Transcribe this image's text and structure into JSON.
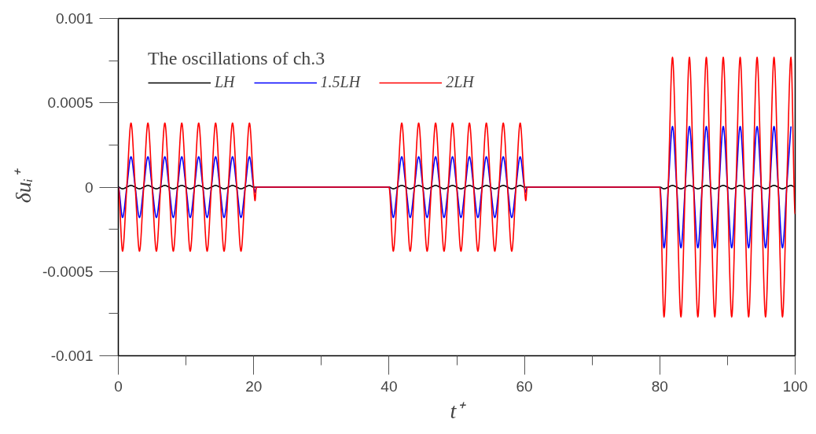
{
  "chart_data": {
    "type": "line",
    "legend_title": "The oscillations of ch.3",
    "xlabel": "t⁺",
    "ylabel": "δuᵢ⁺",
    "legend": "top left",
    "line_style": "solid",
    "xlim": [
      0,
      100
    ],
    "ylim": [
      -0.001,
      0.001
    ],
    "xticks": [
      0,
      {
        "value": 10,
        "label": null
      },
      20,
      {
        "value": 30,
        "label": null
      },
      40,
      {
        "value": 50,
        "label": null
      },
      60,
      {
        "value": 70,
        "label": null
      },
      80,
      {
        "value": 90,
        "label": null
      },
      100
    ],
    "yticks": [
      -0.001,
      {
        "value": -0.00075,
        "label": null
      },
      -0.0005,
      {
        "value": -0.00025,
        "label": null
      },
      0,
      {
        "value": 0.00025,
        "label": null
      },
      0.0005,
      {
        "value": 0.00075,
        "label": null
      },
      0.001
    ],
    "x": [
      0,
      0.625,
      1.25,
      1.875,
      2.5,
      3.125,
      3.75,
      4.375,
      5,
      5.625,
      6.25,
      6.875,
      7.5,
      8.125,
      8.75,
      9.375,
      10,
      10.625,
      11.25,
      11.875,
      12.5,
      13.125,
      13.75,
      14.375,
      15,
      15.625,
      16.25,
      16.875,
      17.5,
      18.125,
      18.75,
      19.375,
      20,
      20.2,
      20.4,
      40,
      40.625,
      41.25,
      41.875,
      42.5,
      43.125,
      43.75,
      44.375,
      45,
      45.625,
      46.25,
      46.875,
      47.5,
      48.125,
      48.75,
      49.375,
      50,
      50.625,
      51.25,
      51.875,
      52.5,
      53.125,
      53.75,
      54.375,
      55,
      55.625,
      56.25,
      56.875,
      57.5,
      58.125,
      58.75,
      59.375,
      60,
      60.2,
      60.4,
      80,
      80.625,
      81.25,
      81.875,
      82.5,
      83.125,
      83.75,
      84.375,
      85,
      85.625,
      86.25,
      86.875,
      87.5,
      88.125,
      88.75,
      89.375,
      90,
      90.625,
      91.25,
      91.875,
      92.5,
      93.125,
      93.75,
      94.375,
      95,
      95.625,
      96.25,
      96.875,
      97.5,
      98.125,
      98.75,
      99.375,
      100
    ],
    "series": [
      {
        "name": "LH",
        "color": "#000000",
        "values": [
          0,
          -1e-05,
          0,
          1e-05,
          0,
          -1e-05,
          0,
          1e-05,
          0,
          -1e-05,
          0,
          1e-05,
          0,
          -1e-05,
          0,
          1e-05,
          0,
          -1e-05,
          0,
          1e-05,
          0,
          -1e-05,
          0,
          1e-05,
          0,
          -1e-05,
          0,
          1e-05,
          0,
          -1e-05,
          0,
          1e-05,
          0,
          0,
          0,
          0,
          -1e-05,
          0,
          1e-05,
          0,
          -1e-05,
          0,
          1e-05,
          0,
          -1e-05,
          0,
          1e-05,
          0,
          -1e-05,
          0,
          1e-05,
          0,
          -1e-05,
          0,
          1e-05,
          0,
          -1e-05,
          0,
          1e-05,
          0,
          -1e-05,
          0,
          1e-05,
          0,
          -1e-05,
          0,
          1e-05,
          0,
          0,
          0,
          0,
          -1e-05,
          0,
          1e-05,
          0,
          -1e-05,
          0,
          1e-05,
          0,
          -1e-05,
          0,
          1e-05,
          0,
          -1e-05,
          0,
          1e-05,
          0,
          -1e-05,
          0,
          1e-05,
          0,
          -1e-05,
          0,
          1e-05,
          0,
          -1e-05,
          0,
          1e-05,
          0,
          -1e-05,
          0,
          1e-05,
          0
        ]
      },
      {
        "name": "1.5LH",
        "color": "#0000ff",
        "values": [
          0,
          -0.00018,
          0,
          0.00018,
          0,
          -0.00018,
          0,
          0.00018,
          0,
          -0.00018,
          0,
          0.00018,
          0,
          -0.00018,
          0,
          0.00018,
          0,
          -0.00018,
          0,
          0.00018,
          0,
          -0.00018,
          0,
          0.00018,
          0,
          -0.00018,
          0,
          0.00018,
          0,
          -0.00018,
          0,
          0.00018,
          0,
          -3e-05,
          0,
          0,
          -0.00018,
          0,
          0.00018,
          0,
          -0.00018,
          0,
          0.00018,
          0,
          -0.00018,
          0,
          0.00018,
          0,
          -0.00018,
          0,
          0.00018,
          0,
          -0.00018,
          0,
          0.00018,
          0,
          -0.00018,
          0,
          0.00018,
          0,
          -0.00018,
          0,
          0.00018,
          0,
          -0.00018,
          0,
          0.00018,
          0,
          -3e-05,
          0,
          0,
          -0.00036,
          0,
          0.00036,
          0,
          -0.00036,
          0,
          0.00036,
          0,
          -0.00036,
          0,
          0.00036,
          0,
          -0.00036,
          0,
          0.00036,
          0,
          -0.00036,
          0,
          0.00036,
          0,
          -0.00036,
          0,
          0.00036,
          0,
          -0.00036,
          0,
          0.00036,
          0,
          -0.00036,
          0,
          0.00036,
          null
        ]
      },
      {
        "name": "2LH",
        "color": "#ff0000",
        "values": [
          0,
          -0.00038,
          0,
          0.00038,
          0,
          -0.00038,
          0,
          0.00038,
          0,
          -0.00038,
          0,
          0.00038,
          0,
          -0.00038,
          0,
          0.00038,
          0,
          -0.00038,
          0,
          0.00038,
          0,
          -0.00038,
          0,
          0.00038,
          0,
          -0.00038,
          0,
          0.00038,
          0,
          -0.00038,
          0,
          0.00038,
          0,
          -8e-05,
          0,
          0,
          -0.00038,
          0,
          0.00038,
          0,
          -0.00038,
          0,
          0.00038,
          0,
          -0.00038,
          0,
          0.00038,
          0,
          -0.00038,
          0,
          0.00038,
          0,
          -0.00038,
          0,
          0.00038,
          0,
          -0.00038,
          0,
          0.00038,
          0,
          -0.00038,
          0,
          0.00038,
          0,
          -0.00038,
          0,
          0.00038,
          0,
          -8e-05,
          0,
          0,
          -0.00077,
          0,
          0.00077,
          0,
          -0.00077,
          0,
          0.00077,
          0,
          -0.00077,
          0,
          0.00077,
          0,
          -0.00077,
          0,
          0.00077,
          0,
          -0.00077,
          0,
          0.00077,
          0,
          -0.00077,
          0,
          0.00077,
          0,
          -0.00077,
          0,
          0.00077,
          0,
          -0.00077,
          0,
          0.00077,
          -0.00016
        ]
      }
    ]
  }
}
